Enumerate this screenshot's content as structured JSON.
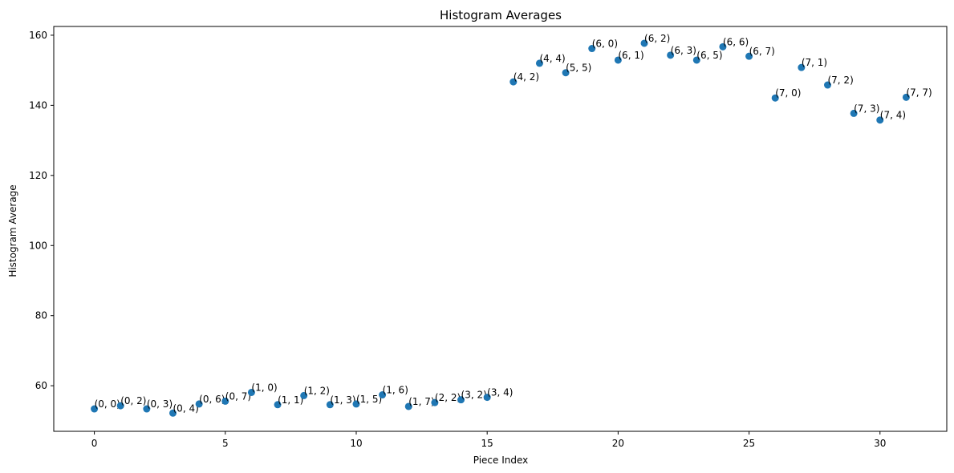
{
  "chart_data": {
    "type": "scatter",
    "title": "Histogram Averages",
    "xlabel": "Piece Index",
    "ylabel": "Histogram Average",
    "xlim": [
      -1.55,
      32.55
    ],
    "ylim": [
      47,
      162.5
    ],
    "xticks": [
      0,
      5,
      10,
      15,
      20,
      25,
      30
    ],
    "yticks": [
      60,
      80,
      100,
      120,
      140,
      160
    ],
    "grid": false,
    "marker_color": "#1f77b4",
    "points": [
      {
        "x": 0,
        "y": 53.4,
        "label": "(0, 0)"
      },
      {
        "x": 1,
        "y": 54.3,
        "label": "(0, 2)"
      },
      {
        "x": 2,
        "y": 53.4,
        "label": "(0, 3)"
      },
      {
        "x": 3,
        "y": 52.2,
        "label": "(0, 4)"
      },
      {
        "x": 4,
        "y": 54.8,
        "label": "(0, 6)"
      },
      {
        "x": 5,
        "y": 55.6,
        "label": "(0, 7)"
      },
      {
        "x": 6,
        "y": 58.1,
        "label": "(1, 0)"
      },
      {
        "x": 7,
        "y": 54.6,
        "label": "(1, 1)"
      },
      {
        "x": 8,
        "y": 57.2,
        "label": "(1, 2)"
      },
      {
        "x": 9,
        "y": 54.6,
        "label": "(1, 3)"
      },
      {
        "x": 10,
        "y": 54.8,
        "label": "(1, 5)"
      },
      {
        "x": 11,
        "y": 57.4,
        "label": "(1, 6)"
      },
      {
        "x": 12,
        "y": 54.1,
        "label": "(1, 7)"
      },
      {
        "x": 13,
        "y": 55.2,
        "label": "(2, 2)"
      },
      {
        "x": 14,
        "y": 56.0,
        "label": "(3, 2)"
      },
      {
        "x": 15,
        "y": 56.7,
        "label": "(3, 4)"
      },
      {
        "x": 16,
        "y": 146.7,
        "label": "(4, 2)"
      },
      {
        "x": 17,
        "y": 152.0,
        "label": "(4, 4)"
      },
      {
        "x": 18,
        "y": 149.3,
        "label": "(5, 5)"
      },
      {
        "x": 19,
        "y": 156.2,
        "label": "(6, 0)"
      },
      {
        "x": 20,
        "y": 152.9,
        "label": "(6, 1)"
      },
      {
        "x": 21,
        "y": 157.7,
        "label": "(6, 2)"
      },
      {
        "x": 22,
        "y": 154.3,
        "label": "(6, 3)"
      },
      {
        "x": 23,
        "y": 152.9,
        "label": "(6, 5)"
      },
      {
        "x": 24,
        "y": 156.7,
        "label": "(6, 6)"
      },
      {
        "x": 25,
        "y": 154.0,
        "label": "(6, 7)"
      },
      {
        "x": 26,
        "y": 142.1,
        "label": "(7, 0)"
      },
      {
        "x": 27,
        "y": 150.8,
        "label": "(7, 1)"
      },
      {
        "x": 28,
        "y": 145.8,
        "label": "(7, 2)"
      },
      {
        "x": 29,
        "y": 137.7,
        "label": "(7, 3)"
      },
      {
        "x": 30,
        "y": 135.8,
        "label": "(7, 4)"
      },
      {
        "x": 31,
        "y": 142.3,
        "label": "(7, 7)"
      }
    ]
  }
}
